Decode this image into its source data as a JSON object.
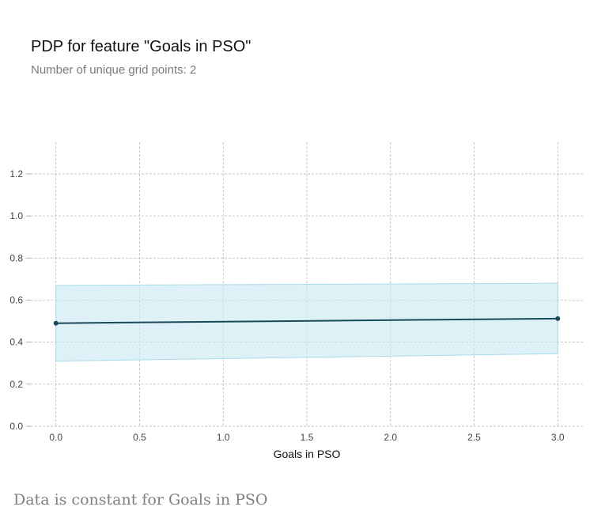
{
  "header": {
    "title": "PDP for feature \"Goals in PSO\"",
    "subtitle": "Number of unique grid points: 2"
  },
  "footnote": "Data is constant for Goals in PSO",
  "colors": {
    "line": "#1a4a5a",
    "band_fill": "#cdeaf2",
    "band_stroke": "#a9dbe8",
    "grid": "#b0b0b0"
  },
  "chart_data": {
    "type": "line",
    "xlabel": "Goals in PSO",
    "ylabel": "",
    "x": [
      0.0,
      3.0
    ],
    "series": [
      {
        "values": [
          0.49,
          0.512
        ],
        "lower": [
          0.31,
          0.345
        ],
        "upper": [
          0.67,
          0.68
        ]
      }
    ],
    "xlim": [
      -0.15,
      3.15
    ],
    "ylim": [
      0.0,
      1.35
    ],
    "xticks": [
      "0.0",
      "0.5",
      "1.0",
      "1.5",
      "2.0",
      "2.5",
      "3.0"
    ],
    "yticks": [
      "0.0",
      "0.2",
      "0.4",
      "0.6",
      "0.8",
      "1.0",
      "1.2"
    ],
    "grid": true
  }
}
